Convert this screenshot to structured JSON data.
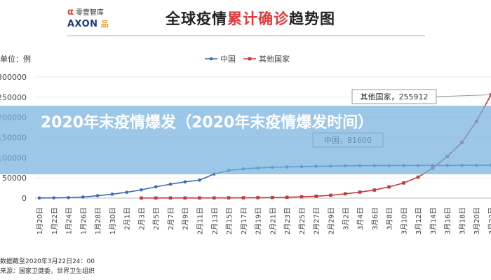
{
  "header": {
    "logo_top_icon": "α",
    "logo_top": "零壹智库",
    "logo_bottom": "AXON",
    "logo_bottom_sub": "品",
    "title_a": "全球疫情",
    "title_b": "累计确诊",
    "title_c": "趋势图"
  },
  "unit_label": "单位：例",
  "banner": {
    "text": "2020年末疫情爆发（2020年末疫情爆发时间）"
  },
  "footer": {
    "date_note": "数据截至2020年3月22日24：00",
    "source": "来源：国家卫健委，世界卫生组织"
  },
  "colors": {
    "china": "#3a6ab0",
    "others": "#c23b3b",
    "banner": "#76b2dc"
  },
  "chart_data": {
    "type": "line",
    "categories": [
      "1月20日",
      "1月22日",
      "1月24日",
      "1月26日",
      "1月28日",
      "1月30日",
      "2月1日",
      "2月3日",
      "2月5日",
      "2月7日",
      "2月9日",
      "2月11日",
      "2月13日",
      "2月15日",
      "2月17日",
      "2月19日",
      "2月21日",
      "2月23日",
      "2月25日",
      "2月27日",
      "2月29日",
      "3月2日",
      "3月4日",
      "3月6日",
      "3月8日",
      "3月10日",
      "3月12日",
      "3月14日",
      "3月16日",
      "3月18日",
      "3月20日",
      "3月22日"
    ],
    "x_ticks": [
      "1月20日",
      "1月22日",
      "1月24日",
      "1月26日",
      "1月28日",
      "1月30日",
      "2月1日",
      "2月3日",
      "2月5日",
      "2月7日",
      "2月9日",
      "2月11日",
      "2月13日",
      "2月15日",
      "2月17日",
      "2月19日",
      "2月21日",
      "2月23日",
      "2月25日",
      "2月27日",
      "2月29日",
      "3月2日",
      "3月4日",
      "3月6日",
      "3月8日",
      "3月10日",
      "3月12日",
      "3月14日",
      "3月16日",
      "3月18日",
      "3月20日",
      "3月22日"
    ],
    "y_ticks": [
      "0",
      "50000",
      "100000",
      "150000",
      "200000",
      "250000",
      "300000"
    ],
    "ylim": [
      0,
      300000
    ],
    "legend": [
      "中国",
      "其他国家"
    ],
    "legend_position": "top-center",
    "series": [
      {
        "name": "中国",
        "values": [
          300,
          600,
          1300,
          2700,
          5900,
          9700,
          14400,
          20400,
          28000,
          34500,
          40200,
          44600,
          59800,
          68400,
          72400,
          74600,
          76300,
          77200,
          78100,
          78800,
          79300,
          80100,
          80400,
          80600,
          80700,
          80800,
          80900,
          80900,
          81000,
          81100,
          81200,
          81600
        ]
      },
      {
        "name": "其他国家",
        "start_index": 7,
        "values": [
          null,
          null,
          null,
          null,
          null,
          null,
          null,
          200,
          250,
          300,
          350,
          400,
          500,
          600,
          800,
          1000,
          1400,
          2000,
          3200,
          4700,
          7100,
          10600,
          14800,
          20000,
          27700,
          37500,
          52000,
          74500,
          103000,
          138000,
          190000,
          255912
        ]
      }
    ],
    "annotations": [
      {
        "series": "其他国家",
        "text": "其他国家，255912"
      },
      {
        "series": "中国",
        "text": "中国，81600"
      }
    ]
  }
}
